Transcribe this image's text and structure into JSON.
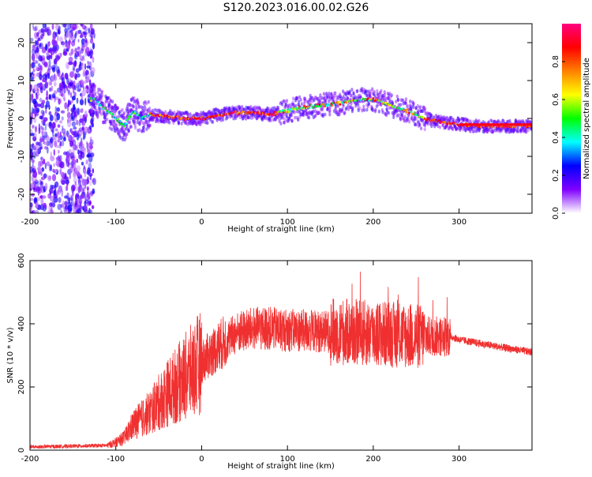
{
  "title": "S120.2023.016.00.02.G26",
  "colors": {
    "snr_line": "#f03030",
    "axis": "#000000",
    "background": "#ffffff"
  },
  "chart_data": [
    {
      "type": "heatmap",
      "xlabel": "Height of straight line (km)",
      "ylabel": "Frequency (Hz)",
      "xlim": [
        -200,
        385
      ],
      "ylim": [
        -25,
        25
      ],
      "x_ticks": [
        "-200",
        "-100",
        "0",
        "100",
        "200",
        "300"
      ],
      "y_ticks": [
        "20",
        "10",
        "0",
        "-10",
        "-20"
      ],
      "colorbar": {
        "label": "Normalized spectral amplitude",
        "range": [
          0,
          1
        ],
        "ticks": [
          "0.0",
          "0.2",
          "0.4",
          "0.6",
          "0.8"
        ],
        "colormap": "rainbow",
        "stops": [
          "#ffffff",
          "#8000ff",
          "#0000ff",
          "#00ffff",
          "#00ff00",
          "#ffff00",
          "#ff8000",
          "#ff0000",
          "#ff0080"
        ]
      },
      "ridge_frequency": {
        "x": [
          -125,
          -110,
          -100,
          -90,
          -80,
          -70,
          -60,
          -40,
          -20,
          0,
          20,
          40,
          60,
          80,
          100,
          120,
          140,
          160,
          180,
          200,
          220,
          240,
          260,
          280,
          300,
          320,
          340,
          385
        ],
        "y": [
          5,
          2,
          0,
          -2,
          2,
          0,
          1,
          0.5,
          0,
          0,
          1,
          1.5,
          1.5,
          1,
          2,
          3,
          3.5,
          4,
          5,
          5,
          3.5,
          2,
          0,
          -1,
          -1.5,
          -2,
          -2,
          -2
        ]
      }
    },
    {
      "type": "line",
      "xlabel": "Height of straight line (km)",
      "ylabel": "SNR (10 * v/v)",
      "xlim": [
        -200,
        385
      ],
      "ylim": [
        0,
        600
      ],
      "x_ticks": [
        "-200",
        "-100",
        "0",
        "100",
        "200",
        "300"
      ],
      "y_ticks": [
        "600",
        "400",
        "200",
        "0"
      ],
      "series": [
        {
          "envelope_x": [
            -200,
            -110,
            -100,
            -90,
            -80,
            -60,
            -40,
            -20,
            0,
            20,
            40,
            60,
            80,
            100,
            150,
            200,
            250,
            290,
            300,
            340,
            385
          ],
          "envelope_y": [
            10,
            15,
            25,
            40,
            80,
            120,
            180,
            230,
            280,
            330,
            370,
            385,
            385,
            380,
            375,
            370,
            360,
            360,
            350,
            330,
            310
          ]
        }
      ]
    }
  ]
}
